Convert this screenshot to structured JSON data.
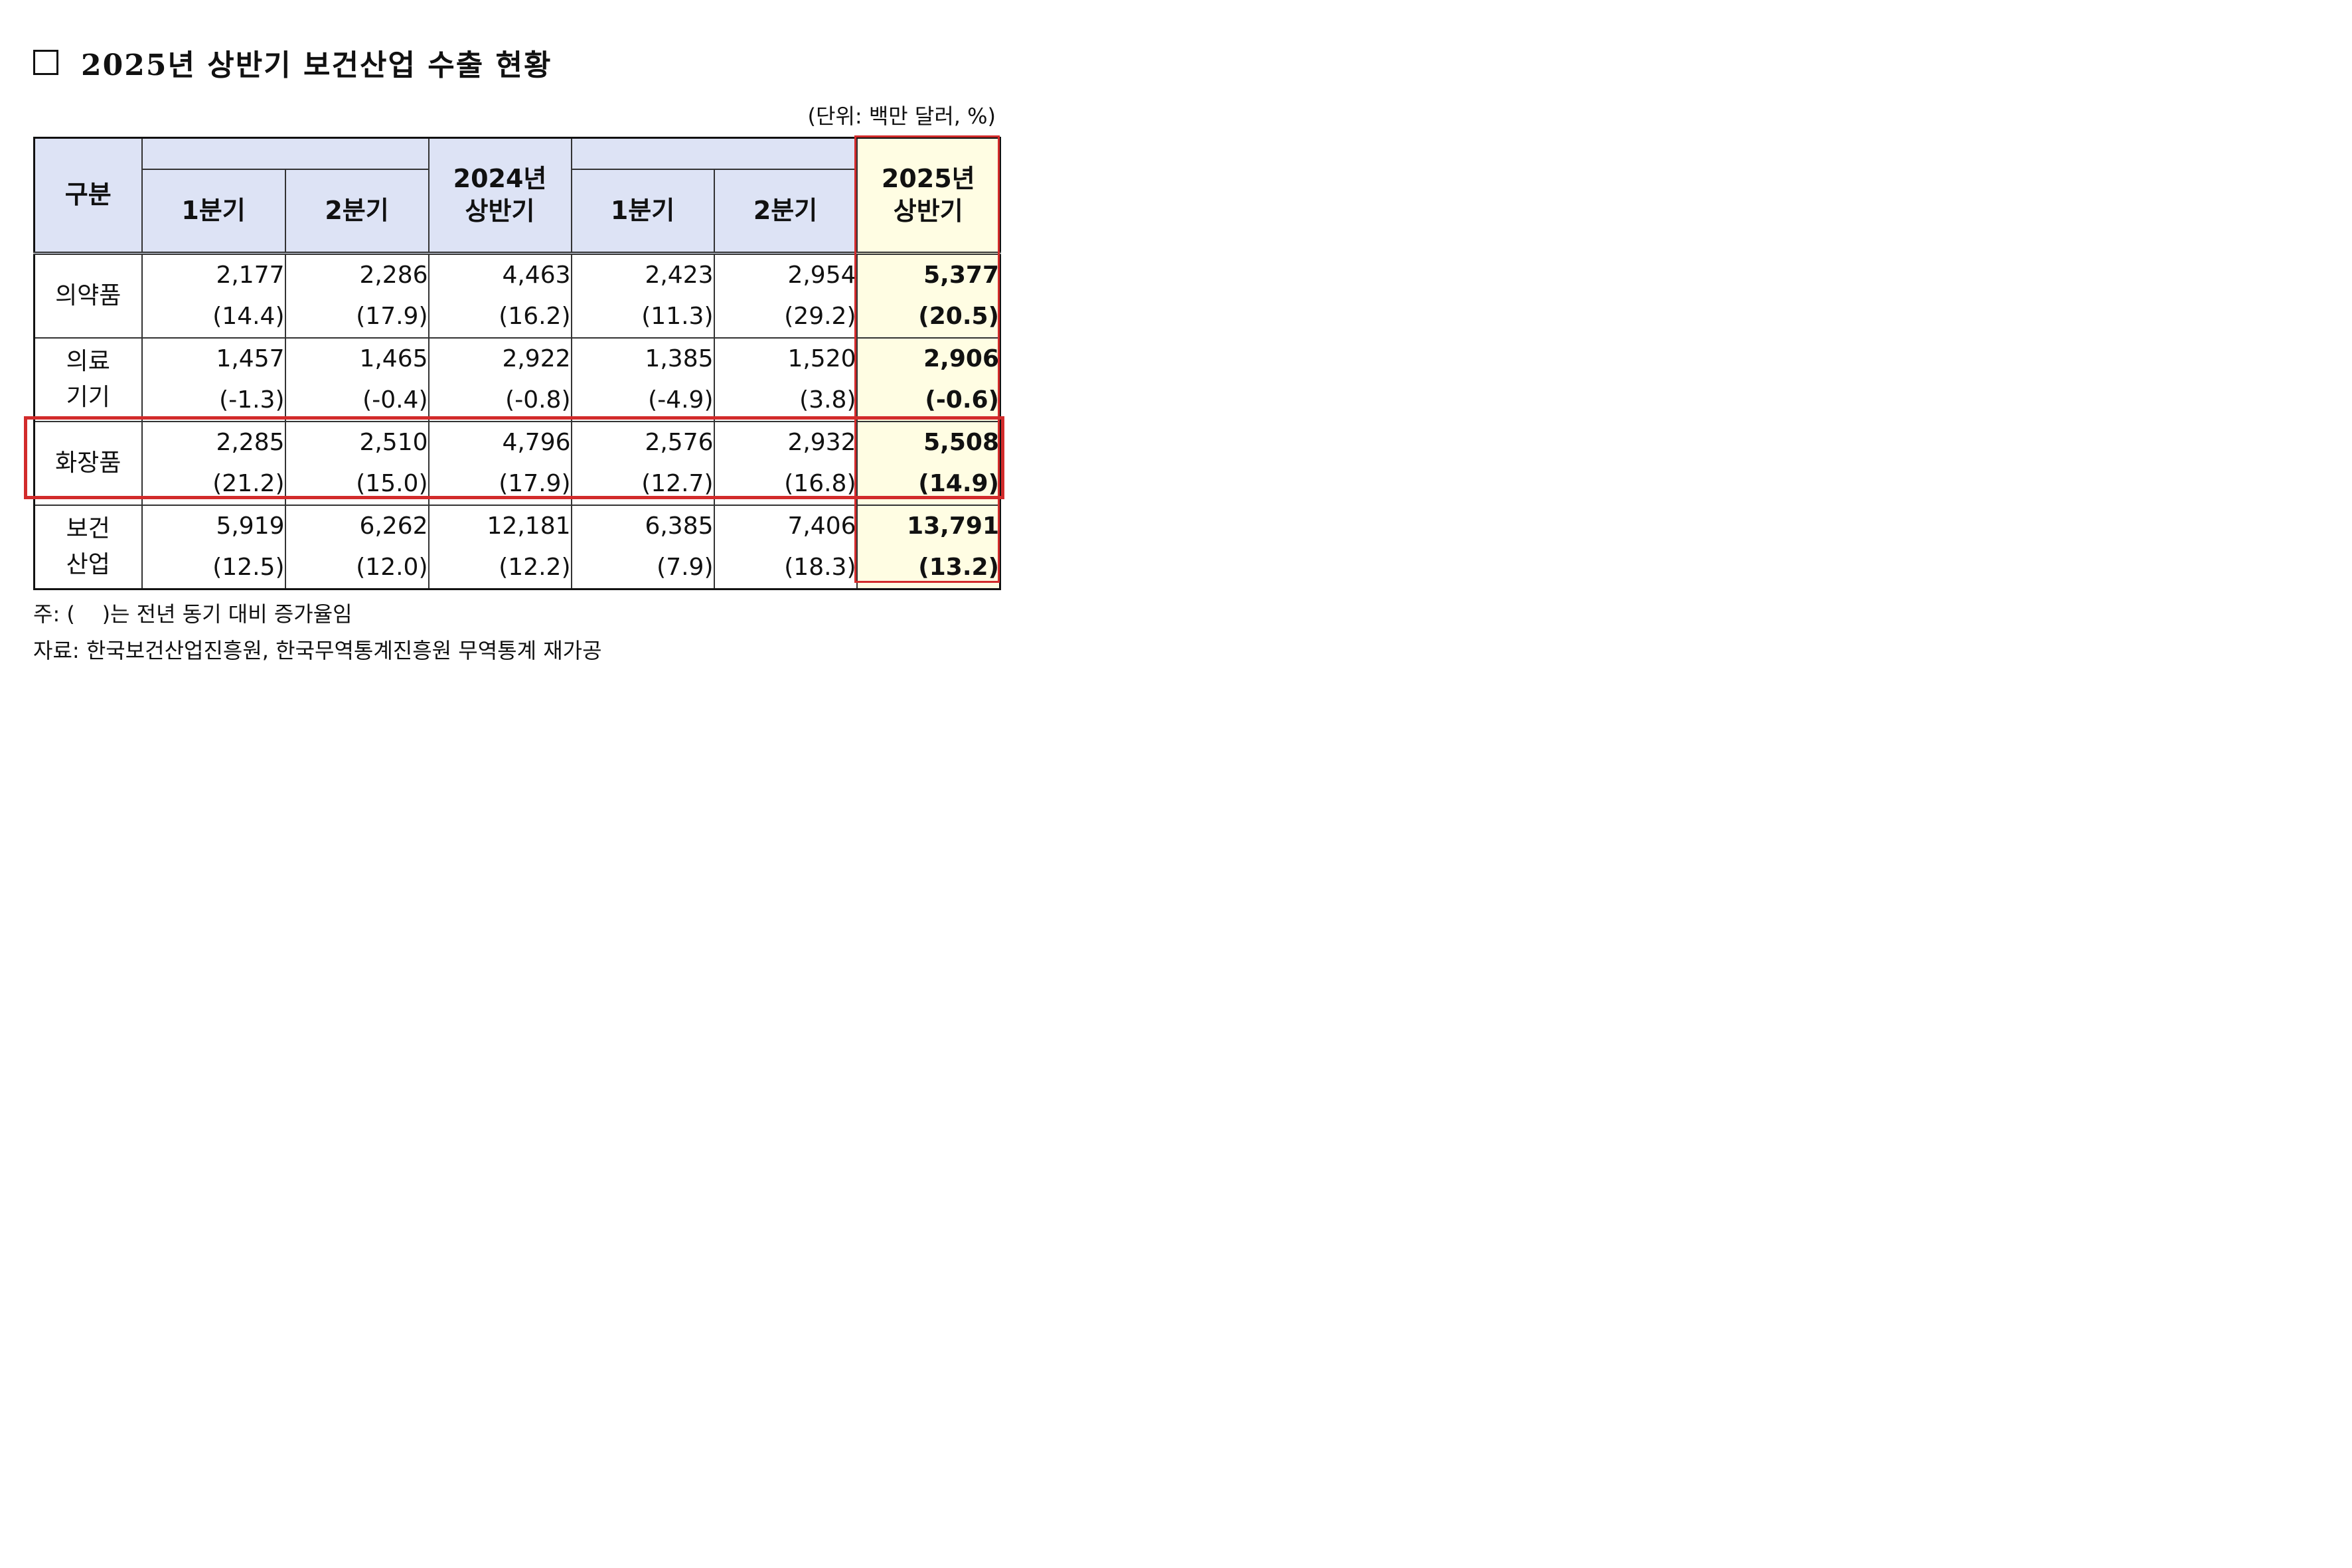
{
  "title": "2025년 상반기 보건산업 수출 현황",
  "unit": "(단위: 백만 달러, %)",
  "header": {
    "category": "구분",
    "y2024_q1": "1분기",
    "y2024_q2": "2분기",
    "y2024_h1": "2024년\n상반기",
    "y2025_q1": "1분기",
    "y2025_q2": "2분기",
    "y2025_h1": "2025년\n상반기"
  },
  "rows": [
    {
      "label": "의약품",
      "values": [
        "2,177",
        "2,286",
        "4,463",
        "2,423",
        "2,954",
        "5,377"
      ],
      "growth": [
        "(14.4)",
        "(17.9)",
        "(16.2)",
        "(11.3)",
        "(29.2)",
        "(20.5)"
      ]
    },
    {
      "label": "의료\n기기",
      "values": [
        "1,457",
        "1,465",
        "2,922",
        "1,385",
        "1,520",
        "2,906"
      ],
      "growth": [
        "(-1.3)",
        "(-0.4)",
        "(-0.8)",
        "(-4.9)",
        "(3.8)",
        "(-0.6)"
      ]
    },
    {
      "label": "화장품",
      "values": [
        "2,285",
        "2,510",
        "4,796",
        "2,576",
        "2,932",
        "5,508"
      ],
      "growth": [
        "(21.2)",
        "(15.0)",
        "(17.9)",
        "(12.7)",
        "(16.8)",
        "(14.9)"
      ]
    },
    {
      "label": "보건\n산업",
      "values": [
        "5,919",
        "6,262",
        "12,181",
        "6,385",
        "7,406",
        "13,791"
      ],
      "growth": [
        "(12.5)",
        "(12.0)",
        "(12.2)",
        "(7.9)",
        "(18.3)",
        "(13.2)"
      ]
    }
  ],
  "notes": {
    "note1": "주: (    )는 전년 동기 대비 증가율임",
    "note2": "자료: 한국보건산업진흥원, 한국무역통계진흥원 무역통계 재가공"
  },
  "colors": {
    "header_bg": "#dde3f5",
    "highlight_bg": "#fffde3",
    "highlight_border": "#d22b2b"
  }
}
